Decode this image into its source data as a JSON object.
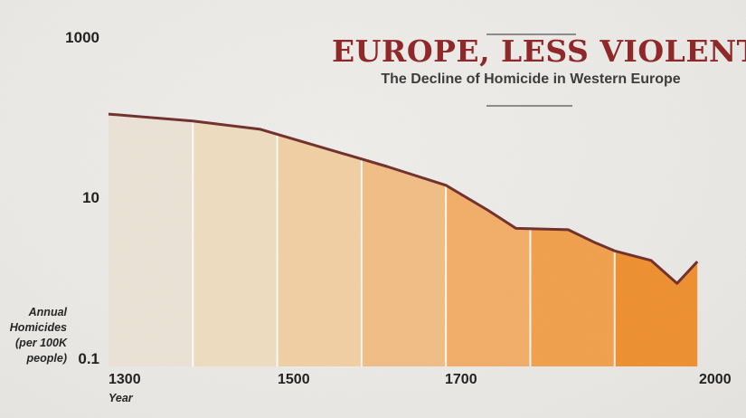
{
  "header": {
    "title": "EUROPE, LESS VIOLENT",
    "subtitle": "The Decline of Homicide in Western Europe"
  },
  "axes": {
    "y_ticks": [
      "1000",
      "10",
      "0.1"
    ],
    "y_label_lines": [
      "Annual",
      "Homicides",
      "(per 100K",
      "people)"
    ],
    "x_ticks": [
      "1300",
      "1500",
      "1700",
      "2000"
    ],
    "x_label": "Year"
  },
  "colors": {
    "background": "#eae9e6",
    "title_text": "#8e2424",
    "subtitle_text": "#3a3a3a",
    "rule": "#8a8a8a",
    "tick_text": "#1d1d1d",
    "curve_line": "#702e2a",
    "band_divider": "#ffffff"
  },
  "chart_data": {
    "type": "area",
    "title": "EUROPE, LESS VIOLENT",
    "subtitle": "The Decline of Homicide in Western Europe",
    "xlabel": "Year",
    "ylabel": "Annual Homicides (per 100K people)",
    "y_scale": "log",
    "x_range": [
      1300,
      2000
    ],
    "x_tick_values": [
      1300,
      1500,
      1700,
      2000
    ],
    "y_tick_values": [
      1000,
      10,
      0.1
    ],
    "grid": false,
    "legend": false,
    "points": [
      {
        "year": 1300,
        "rate": 105
      },
      {
        "year": 1400,
        "rate": 86
      },
      {
        "year": 1480,
        "rate": 68
      },
      {
        "year": 1630,
        "rate": 23.5
      },
      {
        "year": 1700,
        "rate": 13.7
      },
      {
        "year": 1750,
        "rate": 6.7
      },
      {
        "year": 1783,
        "rate": 4.0
      },
      {
        "year": 1845,
        "rate": 3.85
      },
      {
        "year": 1877,
        "rate": 2.65
      },
      {
        "year": 1900,
        "rate": 2.1
      },
      {
        "year": 1943,
        "rate": 1.6
      },
      {
        "year": 1974,
        "rate": 0.83
      },
      {
        "year": 1998,
        "rate": 1.55
      }
    ],
    "century_bands": [
      {
        "start": 1300,
        "end": 1400,
        "color": "#ebe2d6"
      },
      {
        "start": 1400,
        "end": 1500,
        "color": "#eedcbf"
      },
      {
        "start": 1500,
        "end": 1600,
        "color": "#f1cfa3"
      },
      {
        "start": 1600,
        "end": 1700,
        "color": "#f1bd85"
      },
      {
        "start": 1700,
        "end": 1800,
        "color": "#f2ad67"
      },
      {
        "start": 1800,
        "end": 1900,
        "color": "#f1a04c"
      },
      {
        "start": 1900,
        "end": 2000,
        "color": "#ee8f2f"
      }
    ]
  }
}
